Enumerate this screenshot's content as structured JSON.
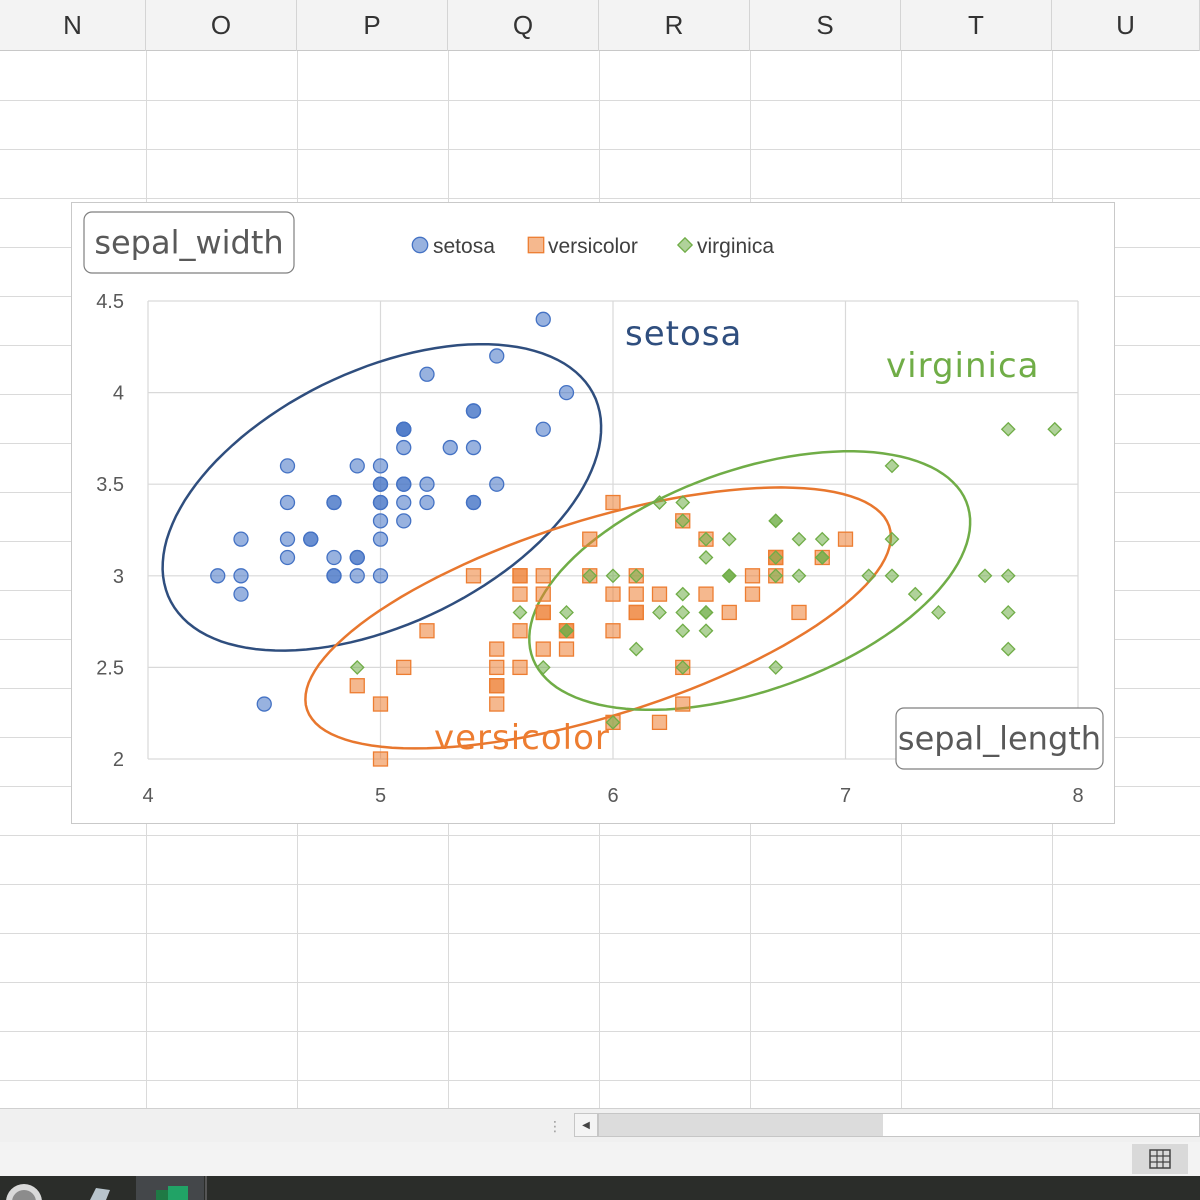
{
  "sheet": {
    "columns": [
      "N",
      "O",
      "P",
      "Q",
      "R",
      "S",
      "T",
      "U"
    ]
  },
  "chart_data": {
    "type": "scatter",
    "title": "",
    "xlabel": "sepal_length",
    "ylabel": "sepal_width",
    "xlim": [
      4,
      8
    ],
    "ylim": [
      2,
      4.5
    ],
    "xticks": [
      4,
      5,
      6,
      7,
      8
    ],
    "yticks": [
      2,
      2.5,
      3,
      3.5,
      4,
      4.5
    ],
    "xtick_labels": [
      "4",
      "5",
      "6",
      "7",
      "8"
    ],
    "ytick_labels": [
      "2",
      "2.5",
      "3",
      "3.5",
      "4",
      "4.5"
    ],
    "grid": true,
    "legend_position": "top",
    "series": [
      {
        "name": "setosa",
        "color": "#4472c4",
        "marker": "circle",
        "points": [
          [
            5.1,
            3.5
          ],
          [
            4.9,
            3.0
          ],
          [
            4.7,
            3.2
          ],
          [
            4.6,
            3.1
          ],
          [
            5.0,
            3.6
          ],
          [
            5.4,
            3.9
          ],
          [
            4.6,
            3.4
          ],
          [
            5.0,
            3.4
          ],
          [
            4.4,
            2.9
          ],
          [
            4.9,
            3.1
          ],
          [
            5.4,
            3.7
          ],
          [
            4.8,
            3.4
          ],
          [
            4.8,
            3.0
          ],
          [
            4.3,
            3.0
          ],
          [
            5.8,
            4.0
          ],
          [
            5.7,
            4.4
          ],
          [
            5.4,
            3.9
          ],
          [
            5.1,
            3.5
          ],
          [
            5.7,
            3.8
          ],
          [
            5.1,
            3.8
          ],
          [
            5.4,
            3.4
          ],
          [
            5.1,
            3.7
          ],
          [
            4.6,
            3.6
          ],
          [
            5.1,
            3.3
          ],
          [
            4.8,
            3.4
          ],
          [
            5.0,
            3.0
          ],
          [
            5.0,
            3.4
          ],
          [
            5.2,
            3.5
          ],
          [
            5.2,
            3.4
          ],
          [
            4.7,
            3.2
          ],
          [
            4.8,
            3.1
          ],
          [
            5.4,
            3.4
          ],
          [
            5.2,
            4.1
          ],
          [
            5.5,
            4.2
          ],
          [
            4.9,
            3.1
          ],
          [
            5.0,
            3.2
          ],
          [
            5.5,
            3.5
          ],
          [
            4.9,
            3.6
          ],
          [
            4.4,
            3.0
          ],
          [
            5.1,
            3.4
          ],
          [
            5.0,
            3.5
          ],
          [
            4.5,
            2.3
          ],
          [
            4.4,
            3.2
          ],
          [
            5.0,
            3.5
          ],
          [
            5.1,
            3.8
          ],
          [
            4.8,
            3.0
          ],
          [
            5.1,
            3.8
          ],
          [
            4.6,
            3.2
          ],
          [
            5.3,
            3.7
          ],
          [
            5.0,
            3.3
          ]
        ]
      },
      {
        "name": "versicolor",
        "color": "#ed7d31",
        "marker": "square",
        "points": [
          [
            7.0,
            3.2
          ],
          [
            6.4,
            3.2
          ],
          [
            6.9,
            3.1
          ],
          [
            5.5,
            2.3
          ],
          [
            6.5,
            2.8
          ],
          [
            5.7,
            2.8
          ],
          [
            6.3,
            3.3
          ],
          [
            4.9,
            2.4
          ],
          [
            6.6,
            2.9
          ],
          [
            5.2,
            2.7
          ],
          [
            5.0,
            2.0
          ],
          [
            5.9,
            3.0
          ],
          [
            6.0,
            2.2
          ],
          [
            6.1,
            2.9
          ],
          [
            5.6,
            2.9
          ],
          [
            6.7,
            3.1
          ],
          [
            5.6,
            3.0
          ],
          [
            5.8,
            2.7
          ],
          [
            6.2,
            2.2
          ],
          [
            5.6,
            2.5
          ],
          [
            5.9,
            3.2
          ],
          [
            6.1,
            2.8
          ],
          [
            6.3,
            2.5
          ],
          [
            6.1,
            2.8
          ],
          [
            6.4,
            2.9
          ],
          [
            6.6,
            3.0
          ],
          [
            6.8,
            2.8
          ],
          [
            6.7,
            3.0
          ],
          [
            6.0,
            2.9
          ],
          [
            5.7,
            2.6
          ],
          [
            5.5,
            2.4
          ],
          [
            5.5,
            2.4
          ],
          [
            5.8,
            2.7
          ],
          [
            6.0,
            2.7
          ],
          [
            5.4,
            3.0
          ],
          [
            6.0,
            3.4
          ],
          [
            6.7,
            3.1
          ],
          [
            6.3,
            2.3
          ],
          [
            5.6,
            3.0
          ],
          [
            5.5,
            2.5
          ],
          [
            5.5,
            2.6
          ],
          [
            6.1,
            3.0
          ],
          [
            5.8,
            2.6
          ],
          [
            5.0,
            2.3
          ],
          [
            5.6,
            2.7
          ],
          [
            5.7,
            3.0
          ],
          [
            5.7,
            2.9
          ],
          [
            6.2,
            2.9
          ],
          [
            5.1,
            2.5
          ],
          [
            5.7,
            2.8
          ]
        ]
      },
      {
        "name": "virginica",
        "color": "#70ad47",
        "marker": "diamond",
        "points": [
          [
            6.3,
            3.3
          ],
          [
            5.8,
            2.7
          ],
          [
            7.1,
            3.0
          ],
          [
            6.3,
            2.9
          ],
          [
            6.5,
            3.0
          ],
          [
            7.6,
            3.0
          ],
          [
            4.9,
            2.5
          ],
          [
            7.3,
            2.9
          ],
          [
            6.7,
            2.5
          ],
          [
            7.2,
            3.6
          ],
          [
            6.5,
            3.2
          ],
          [
            6.4,
            2.7
          ],
          [
            6.8,
            3.0
          ],
          [
            5.7,
            2.5
          ],
          [
            5.8,
            2.8
          ],
          [
            6.4,
            3.2
          ],
          [
            6.5,
            3.0
          ],
          [
            7.7,
            3.8
          ],
          [
            7.7,
            2.6
          ],
          [
            6.0,
            2.2
          ],
          [
            6.9,
            3.2
          ],
          [
            5.6,
            2.8
          ],
          [
            7.7,
            2.8
          ],
          [
            6.3,
            2.7
          ],
          [
            6.7,
            3.3
          ],
          [
            7.2,
            3.2
          ],
          [
            6.2,
            2.8
          ],
          [
            6.1,
            3.0
          ],
          [
            6.4,
            2.8
          ],
          [
            7.2,
            3.0
          ],
          [
            7.4,
            2.8
          ],
          [
            7.9,
            3.8
          ],
          [
            6.4,
            2.8
          ],
          [
            6.3,
            2.8
          ],
          [
            6.1,
            2.6
          ],
          [
            7.7,
            3.0
          ],
          [
            6.3,
            3.4
          ],
          [
            6.4,
            3.1
          ],
          [
            6.0,
            3.0
          ],
          [
            6.9,
            3.1
          ],
          [
            6.7,
            3.1
          ],
          [
            6.9,
            3.1
          ],
          [
            5.8,
            2.7
          ],
          [
            6.8,
            3.2
          ],
          [
            6.7,
            3.3
          ],
          [
            6.7,
            3.0
          ],
          [
            6.3,
            2.5
          ],
          [
            6.5,
            3.0
          ],
          [
            6.2,
            3.4
          ],
          [
            5.9,
            3.0
          ]
        ]
      }
    ],
    "annotations": [
      {
        "text": "setosa",
        "color": "#2f4e7e"
      },
      {
        "text": "virginica",
        "color": "#70ad47"
      },
      {
        "text": "versicolor",
        "color": "#ed7d31"
      }
    ],
    "ellipses": [
      {
        "name": "setosa",
        "color": "#2f4e7e",
        "center": [
          5.006,
          3.428
        ],
        "semi_axes": [
          1.08,
          0.65
        ],
        "angle_deg": 37.6
      },
      {
        "name": "versicolor",
        "color": "#e8772e",
        "center": [
          5.936,
          2.77
        ],
        "semi_axes": [
          1.35,
          0.52
        ],
        "angle_deg": 23.0
      },
      {
        "name": "virginica",
        "color": "#70ad47",
        "center": [
          6.588,
          2.974
        ],
        "semi_axes": [
          1.03,
          0.58
        ],
        "angle_deg": 28.2
      }
    ]
  }
}
